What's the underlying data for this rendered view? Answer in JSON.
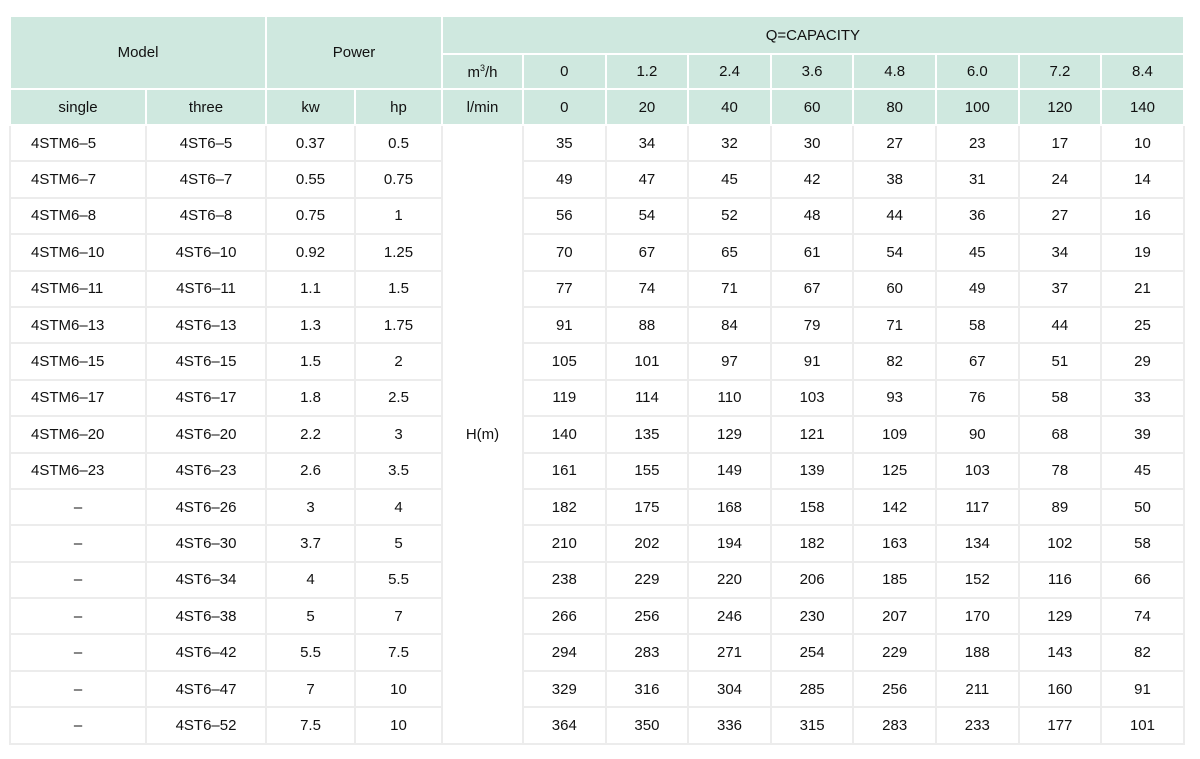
{
  "header": {
    "model": "Model",
    "power": "Power",
    "capacity": "Q=CAPACITY",
    "m3h_label": "m",
    "m3h_sup": "3",
    "m3h_suffix": "/h",
    "lmin_label": "l/min",
    "single": "single",
    "three": "three",
    "kw": "kw",
    "hp": "hp",
    "m3h_values": [
      "0",
      "1.2",
      "2.4",
      "3.6",
      "4.8",
      "6.0",
      "7.2",
      "8.4"
    ],
    "lmin_values": [
      "0",
      "20",
      "40",
      "60",
      "80",
      "100",
      "120",
      "140"
    ]
  },
  "head_label": "H(m)",
  "rows": [
    {
      "single": "4STM6–5",
      "three": "4ST6–5",
      "kw": "0.37",
      "hp": "0.5",
      "h": [
        "35",
        "34",
        "32",
        "30",
        "27",
        "23",
        "17",
        "10"
      ]
    },
    {
      "single": "4STM6–7",
      "three": "4ST6–7",
      "kw": "0.55",
      "hp": "0.75",
      "h": [
        "49",
        "47",
        "45",
        "42",
        "38",
        "31",
        "24",
        "14"
      ]
    },
    {
      "single": "4STM6–8",
      "three": "4ST6–8",
      "kw": "0.75",
      "hp": "1",
      "h": [
        "56",
        "54",
        "52",
        "48",
        "44",
        "36",
        "27",
        "16"
      ]
    },
    {
      "single": "4STM6–10",
      "three": "4ST6–10",
      "kw": "0.92",
      "hp": "1.25",
      "h": [
        "70",
        "67",
        "65",
        "61",
        "54",
        "45",
        "34",
        "19"
      ]
    },
    {
      "single": "4STM6–11",
      "three": "4ST6–11",
      "kw": "1.1",
      "hp": "1.5",
      "h": [
        "77",
        "74",
        "71",
        "67",
        "60",
        "49",
        "37",
        "21"
      ]
    },
    {
      "single": "4STM6–13",
      "three": "4ST6–13",
      "kw": "1.3",
      "hp": "1.75",
      "h": [
        "91",
        "88",
        "84",
        "79",
        "71",
        "58",
        "44",
        "25"
      ]
    },
    {
      "single": "4STM6–15",
      "three": "4ST6–15",
      "kw": "1.5",
      "hp": "2",
      "h": [
        "105",
        "101",
        "97",
        "91",
        "82",
        "67",
        "51",
        "29"
      ]
    },
    {
      "single": "4STM6–17",
      "three": "4ST6–17",
      "kw": "1.8",
      "hp": "2.5",
      "h": [
        "119",
        "114",
        "110",
        "103",
        "93",
        "76",
        "58",
        "33"
      ]
    },
    {
      "single": "4STM6–20",
      "three": "4ST6–20",
      "kw": "2.2",
      "hp": "3",
      "h": [
        "140",
        "135",
        "129",
        "121",
        "109",
        "90",
        "68",
        "39"
      ]
    },
    {
      "single": "4STM6–23",
      "three": "4ST6–23",
      "kw": "2.6",
      "hp": "3.5",
      "h": [
        "161",
        "155",
        "149",
        "139",
        "125",
        "103",
        "78",
        "45"
      ]
    },
    {
      "single": "–",
      "three": "4ST6–26",
      "kw": "3",
      "hp": "4",
      "h": [
        "182",
        "175",
        "168",
        "158",
        "142",
        "117",
        "89",
        "50"
      ]
    },
    {
      "single": "–",
      "three": "4ST6–30",
      "kw": "3.7",
      "hp": "5",
      "h": [
        "210",
        "202",
        "194",
        "182",
        "163",
        "134",
        "102",
        "58"
      ]
    },
    {
      "single": "–",
      "three": "4ST6–34",
      "kw": "4",
      "hp": "5.5",
      "h": [
        "238",
        "229",
        "220",
        "206",
        "185",
        "152",
        "116",
        "66"
      ]
    },
    {
      "single": "–",
      "three": "4ST6–38",
      "kw": "5",
      "hp": "7",
      "h": [
        "266",
        "256",
        "246",
        "230",
        "207",
        "170",
        "129",
        "74"
      ]
    },
    {
      "single": "–",
      "three": "4ST6–42",
      "kw": "5.5",
      "hp": "7.5",
      "h": [
        "294",
        "283",
        "271",
        "254",
        "229",
        "188",
        "143",
        "82"
      ]
    },
    {
      "single": "–",
      "three": "4ST6–47",
      "kw": "7",
      "hp": "10",
      "h": [
        "329",
        "316",
        "304",
        "285",
        "256",
        "211",
        "160",
        "91"
      ]
    },
    {
      "single": "–",
      "three": "4ST6–52",
      "kw": "7.5",
      "hp": "10",
      "h": [
        "364",
        "350",
        "336",
        "315",
        "283",
        "233",
        "177",
        "101"
      ]
    }
  ],
  "colors": {
    "header_bg": "#cfe8df",
    "border": "#ececec"
  }
}
